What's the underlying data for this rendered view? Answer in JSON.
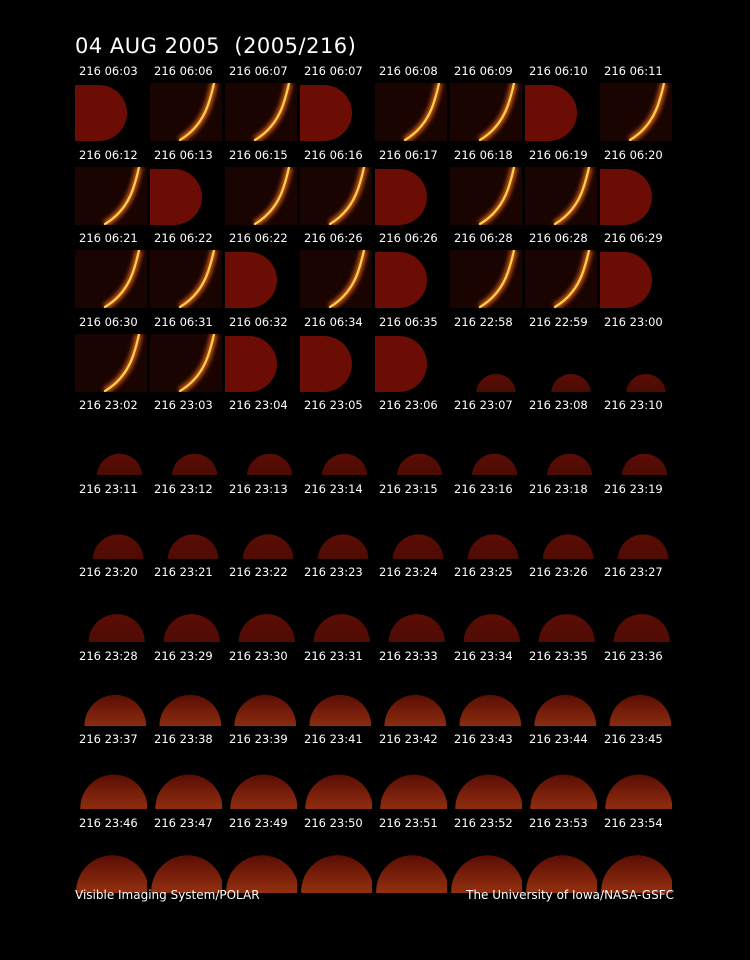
{
  "title": "04 AUG 2005  (2005/216)",
  "footer_left": "Visible Imaging System/POLAR",
  "footer_right": "The University of Iowa/NASA-GSFC",
  "frames": [
    {
      "label": "216 06:03",
      "type": "disk"
    },
    {
      "label": "216 06:06",
      "type": "arc"
    },
    {
      "label": "216 06:07",
      "type": "arc"
    },
    {
      "label": "216 06:07",
      "type": "disk"
    },
    {
      "label": "216 06:08",
      "type": "arc"
    },
    {
      "label": "216 06:09",
      "type": "arc"
    },
    {
      "label": "216 06:10",
      "type": "disk"
    },
    {
      "label": "216 06:11",
      "type": "arc"
    },
    {
      "label": "216 06:12",
      "type": "arc"
    },
    {
      "label": "216 06:13",
      "type": "disk"
    },
    {
      "label": "216 06:15",
      "type": "arc"
    },
    {
      "label": "216 06:16",
      "type": "arc"
    },
    {
      "label": "216 06:17",
      "type": "disk"
    },
    {
      "label": "216 06:18",
      "type": "arc"
    },
    {
      "label": "216 06:19",
      "type": "arc"
    },
    {
      "label": "216 06:20",
      "type": "disk"
    },
    {
      "label": "216 06:21",
      "type": "arc"
    },
    {
      "label": "216 06:22",
      "type": "arc"
    },
    {
      "label": "216 06:22",
      "type": "disk"
    },
    {
      "label": "216 06:26",
      "type": "arc"
    },
    {
      "label": "216 06:26",
      "type": "disk"
    },
    {
      "label": "216 06:28",
      "type": "arc"
    },
    {
      "label": "216 06:28",
      "type": "arc"
    },
    {
      "label": "216 06:29",
      "type": "disk"
    },
    {
      "label": "216 06:30",
      "type": "arc"
    },
    {
      "label": "216 06:31",
      "type": "arc"
    },
    {
      "label": "216 06:32",
      "type": "disk"
    },
    {
      "label": "216 06:34",
      "type": "disk"
    },
    {
      "label": "216 06:35",
      "type": "disk"
    },
    {
      "label": "216 22:58",
      "type": "cap"
    },
    {
      "label": "216 22:59",
      "type": "cap"
    },
    {
      "label": "216 23:00",
      "type": "cap"
    },
    {
      "label": "216 23:02",
      "type": "cap"
    },
    {
      "label": "216 23:03",
      "type": "cap"
    },
    {
      "label": "216 23:04",
      "type": "cap"
    },
    {
      "label": "216 23:05",
      "type": "cap"
    },
    {
      "label": "216 23:06",
      "type": "cap"
    },
    {
      "label": "216 23:07",
      "type": "cap"
    },
    {
      "label": "216 23:08",
      "type": "cap"
    },
    {
      "label": "216 23:10",
      "type": "cap"
    },
    {
      "label": "216 23:11",
      "type": "cap"
    },
    {
      "label": "216 23:12",
      "type": "cap"
    },
    {
      "label": "216 23:13",
      "type": "cap"
    },
    {
      "label": "216 23:14",
      "type": "cap"
    },
    {
      "label": "216 23:15",
      "type": "cap"
    },
    {
      "label": "216 23:16",
      "type": "cap"
    },
    {
      "label": "216 23:18",
      "type": "cap"
    },
    {
      "label": "216 23:19",
      "type": "cap"
    },
    {
      "label": "216 23:20",
      "type": "cap"
    },
    {
      "label": "216 23:21",
      "type": "cap"
    },
    {
      "label": "216 23:22",
      "type": "cap"
    },
    {
      "label": "216 23:23",
      "type": "cap"
    },
    {
      "label": "216 23:24",
      "type": "cap"
    },
    {
      "label": "216 23:25",
      "type": "cap"
    },
    {
      "label": "216 23:26",
      "type": "cap"
    },
    {
      "label": "216 23:27",
      "type": "cap"
    },
    {
      "label": "216 23:28",
      "type": "cap"
    },
    {
      "label": "216 23:29",
      "type": "cap"
    },
    {
      "label": "216 23:30",
      "type": "cap"
    },
    {
      "label": "216 23:31",
      "type": "cap"
    },
    {
      "label": "216 23:33",
      "type": "cap"
    },
    {
      "label": "216 23:34",
      "type": "cap"
    },
    {
      "label": "216 23:35",
      "type": "cap"
    },
    {
      "label": "216 23:36",
      "type": "cap"
    },
    {
      "label": "216 23:37",
      "type": "cap"
    },
    {
      "label": "216 23:38",
      "type": "cap"
    },
    {
      "label": "216 23:39",
      "type": "cap"
    },
    {
      "label": "216 23:41",
      "type": "cap"
    },
    {
      "label": "216 23:42",
      "type": "cap"
    },
    {
      "label": "216 23:43",
      "type": "cap"
    },
    {
      "label": "216 23:44",
      "type": "cap"
    },
    {
      "label": "216 23:45",
      "type": "cap"
    },
    {
      "label": "216 23:46",
      "type": "cap"
    },
    {
      "label": "216 23:47",
      "type": "cap"
    },
    {
      "label": "216 23:49",
      "type": "cap"
    },
    {
      "label": "216 23:50",
      "type": "cap"
    },
    {
      "label": "216 23:51",
      "type": "cap"
    },
    {
      "label": "216 23:52",
      "type": "cap"
    },
    {
      "label": "216 23:53",
      "type": "cap"
    },
    {
      "label": "216 23:54",
      "type": "cap"
    }
  ],
  "colors": {
    "background": "#000000",
    "disk": "#6b0c05",
    "cap_dim": "#5a0d05",
    "cap_bright": "#d2521a",
    "arc_core": "#ffd24a",
    "arc_glow": "#e0641c",
    "text": "#ffffff"
  }
}
